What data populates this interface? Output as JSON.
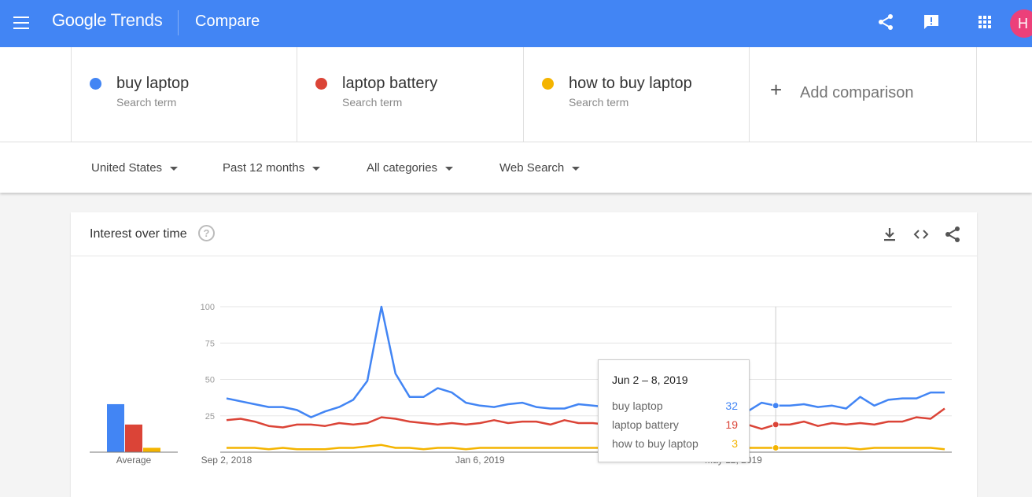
{
  "header": {
    "logo_google": "Google",
    "logo_trends": "Trends",
    "page_title": "Compare",
    "avatar_initial": "H",
    "background": "#4285f4"
  },
  "terms": [
    {
      "name": "buy laptop",
      "type": "Search term",
      "color": "#4285f4"
    },
    {
      "name": "laptop battery",
      "type": "Search term",
      "color": "#db4437"
    },
    {
      "name": "how to buy laptop",
      "type": "Search term",
      "color": "#f4b400"
    }
  ],
  "add_comparison": {
    "plus": "+",
    "label": "Add comparison"
  },
  "filters": {
    "region": "United States",
    "time": "Past 12 months",
    "category": "All categories",
    "search_type": "Web Search"
  },
  "card": {
    "title": "Interest over time",
    "help": "?"
  },
  "tooltip": {
    "date": "Jun 2 – 8, 2019",
    "rows": [
      {
        "name": "buy laptop",
        "value": "32",
        "color": "#4285f4"
      },
      {
        "name": "laptop battery",
        "value": "19",
        "color": "#db4437"
      },
      {
        "name": "how to buy laptop",
        "value": "3",
        "color": "#f4b400"
      }
    ]
  },
  "chart_data": {
    "type": "line",
    "y_ticks": [
      25,
      50,
      75,
      100
    ],
    "ylim": [
      0,
      100
    ],
    "x_tick_labels": [
      {
        "label": "Sep 2, 2018",
        "week_index": 0
      },
      {
        "label": "Jan 6, 2019",
        "week_index": 18
      },
      {
        "label": "May 12, 2019",
        "week_index": 36
      }
    ],
    "highlight_week_index": 39,
    "grid": true,
    "series": [
      {
        "name": "buy laptop",
        "color": "#4285f4",
        "values": [
          37,
          35,
          33,
          31,
          31,
          29,
          24,
          28,
          31,
          36,
          49,
          100,
          54,
          38,
          38,
          44,
          41,
          34,
          32,
          31,
          33,
          34,
          31,
          30,
          30,
          33,
          32,
          31,
          30,
          28,
          26,
          27,
          25,
          26,
          28,
          30,
          27,
          28,
          34,
          32,
          32,
          33,
          31,
          32,
          30,
          38,
          32,
          36,
          37,
          37,
          41,
          41
        ]
      },
      {
        "name": "laptop battery",
        "color": "#db4437",
        "values": [
          22,
          23,
          21,
          18,
          17,
          19,
          19,
          18,
          20,
          19,
          20,
          24,
          23,
          21,
          20,
          19,
          20,
          19,
          20,
          22,
          20,
          21,
          21,
          19,
          22,
          20,
          20,
          19,
          19,
          20,
          20,
          21,
          18,
          21,
          19,
          18,
          17,
          19,
          16,
          19,
          19,
          21,
          18,
          20,
          19,
          20,
          19,
          21,
          21,
          24,
          23,
          30
        ]
      },
      {
        "name": "how to buy laptop",
        "color": "#f4b400",
        "values": [
          3,
          3,
          3,
          2,
          3,
          2,
          2,
          2,
          3,
          3,
          4,
          5,
          3,
          3,
          2,
          3,
          3,
          2,
          3,
          3,
          3,
          3,
          3,
          3,
          3,
          3,
          3,
          3,
          3,
          3,
          3,
          3,
          3,
          3,
          3,
          3,
          3,
          3,
          3,
          3,
          3,
          3,
          3,
          3,
          3,
          2,
          3,
          3,
          3,
          3,
          3,
          2
        ]
      }
    ],
    "averages": [
      {
        "name": "buy laptop",
        "value": 33,
        "color": "#4285f4"
      },
      {
        "name": "laptop battery",
        "value": 19,
        "color": "#db4437"
      },
      {
        "name": "how to buy laptop",
        "value": 3,
        "color": "#f4b400"
      }
    ],
    "average_label": "Average"
  }
}
